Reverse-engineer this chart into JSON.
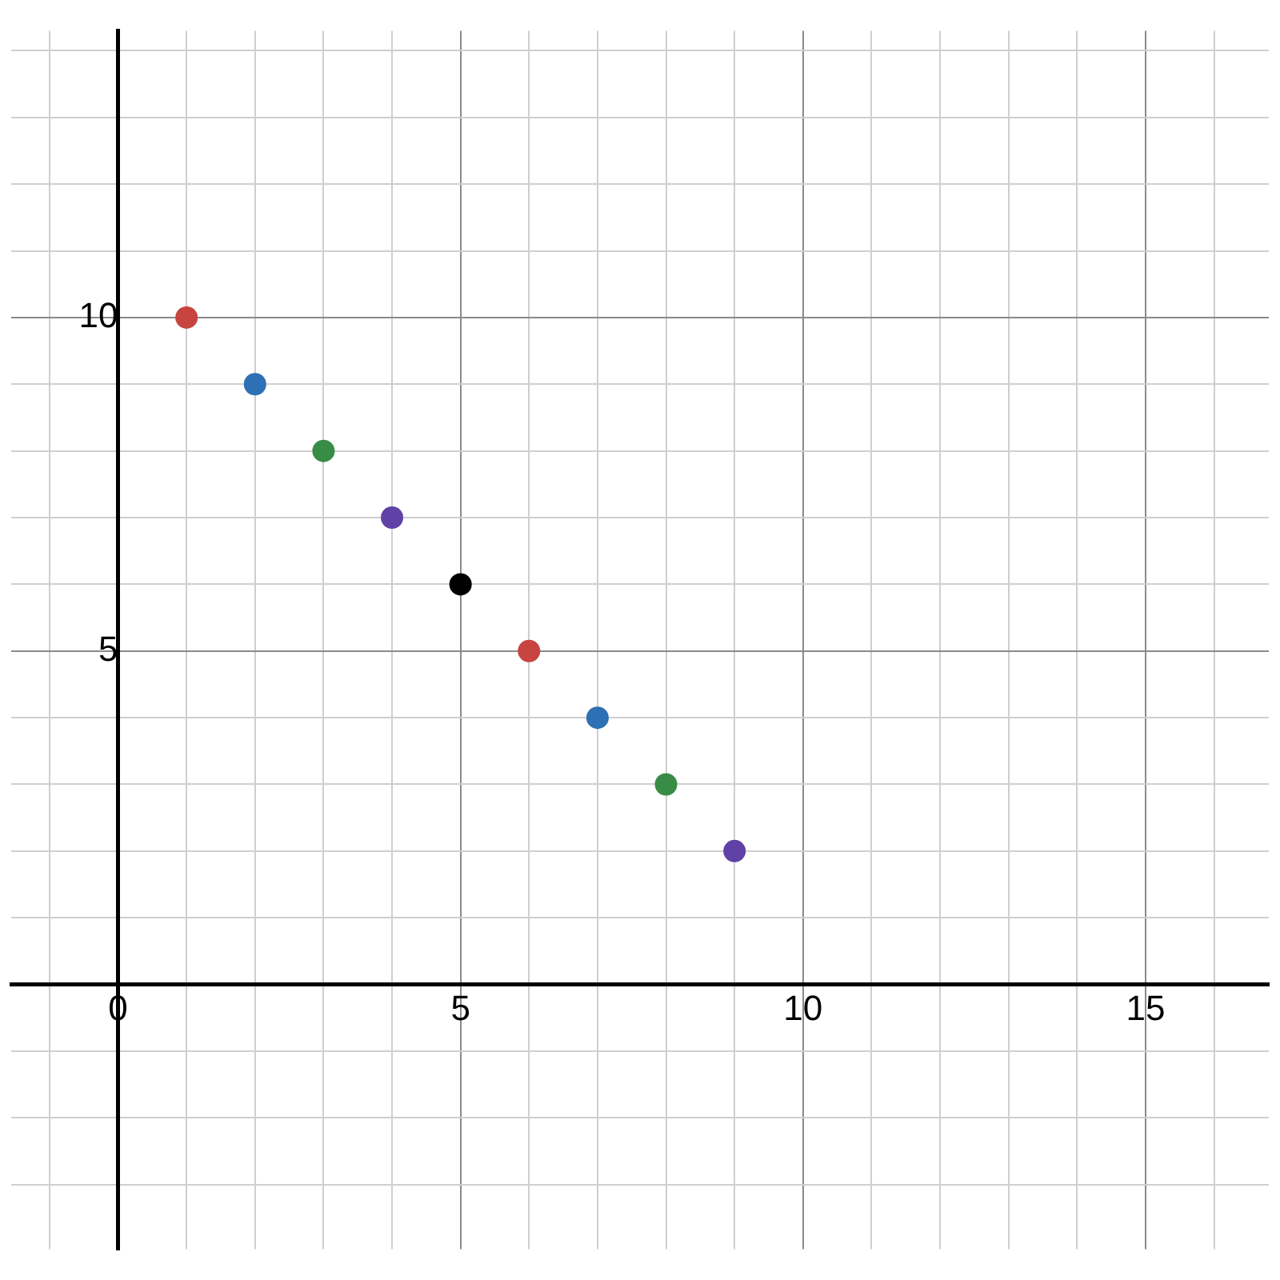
{
  "chart_data": {
    "type": "scatter",
    "x": [
      1,
      2,
      3,
      4,
      5,
      6,
      7,
      8,
      9
    ],
    "values": [
      10,
      9,
      8,
      7,
      6,
      5,
      4,
      3,
      2
    ],
    "colors": [
      "#c74440",
      "#2d70b3",
      "#388c46",
      "#6042a6",
      "#000000",
      "#c74440",
      "#2d70b3",
      "#388c46",
      "#6042a6"
    ],
    "marker": "circle",
    "grid": true,
    "legend": false,
    "xlim": [
      -1.56,
      16.8
    ],
    "ylim": [
      -3.97,
      14.3
    ],
    "xticks": [
      {
        "value": -1,
        "label": null
      },
      0,
      {
        "value": 1,
        "label": null
      },
      {
        "value": 2,
        "label": null
      },
      {
        "value": 3,
        "label": null
      },
      {
        "value": 4,
        "label": null
      },
      5,
      {
        "value": 6,
        "label": null
      },
      {
        "value": 7,
        "label": null
      },
      {
        "value": 8,
        "label": null
      },
      {
        "value": 9,
        "label": null
      },
      10,
      {
        "value": 11,
        "label": null
      },
      {
        "value": 12,
        "label": null
      },
      {
        "value": 13,
        "label": null
      },
      {
        "value": 14,
        "label": null
      },
      15,
      {
        "value": 16,
        "label": null
      }
    ],
    "yticks": [
      {
        "value": -3,
        "label": null
      },
      {
        "value": -2,
        "label": null
      },
      {
        "value": -1,
        "label": null
      },
      {
        "value": 1,
        "label": null
      },
      {
        "value": 2,
        "label": null
      },
      {
        "value": 3,
        "label": null
      },
      {
        "value": 4,
        "label": null
      },
      5,
      {
        "value": 6,
        "label": null
      },
      {
        "value": 7,
        "label": null
      },
      {
        "value": 8,
        "label": null
      },
      {
        "value": 9,
        "label": null
      },
      10,
      {
        "value": 11,
        "label": null
      },
      {
        "value": 12,
        "label": null
      },
      {
        "value": 13,
        "label": null
      },
      {
        "value": 14,
        "label": null
      }
    ]
  }
}
